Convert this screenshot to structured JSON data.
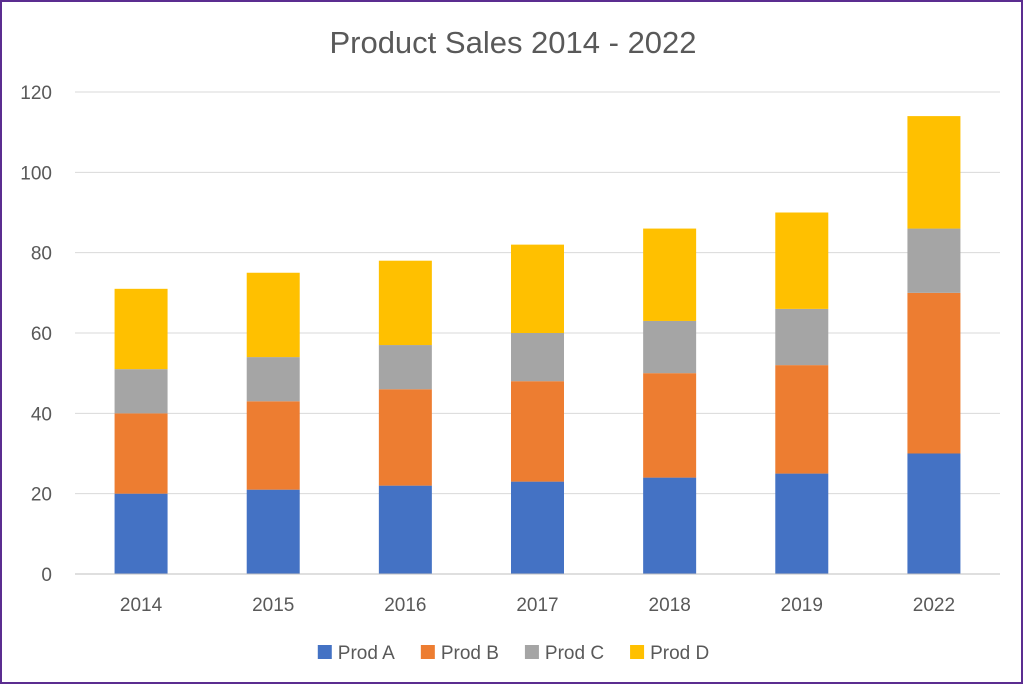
{
  "chart_data": {
    "type": "bar",
    "stacked": true,
    "title": "Product Sales 2014 - 2022",
    "xlabel": "",
    "ylabel": "",
    "categories": [
      "2014",
      "2015",
      "2016",
      "2017",
      "2018",
      "2019",
      "2022"
    ],
    "ylim": [
      0,
      120
    ],
    "yticks": [
      0,
      20,
      40,
      60,
      80,
      100,
      120
    ],
    "grid": true,
    "legend_position": "bottom",
    "series": [
      {
        "name": "Prod A",
        "color": "#4472c4",
        "values": [
          20,
          21,
          22,
          23,
          24,
          25,
          30
        ]
      },
      {
        "name": "Prod B",
        "color": "#ed7d31",
        "values": [
          20,
          22,
          24,
          25,
          26,
          27,
          40
        ]
      },
      {
        "name": "Prod C",
        "color": "#a5a5a5",
        "values": [
          11,
          11,
          11,
          12,
          13,
          14,
          16
        ]
      },
      {
        "name": "Prod D",
        "color": "#ffc000",
        "values": [
          20,
          21,
          21,
          22,
          23,
          24,
          28
        ]
      }
    ]
  }
}
